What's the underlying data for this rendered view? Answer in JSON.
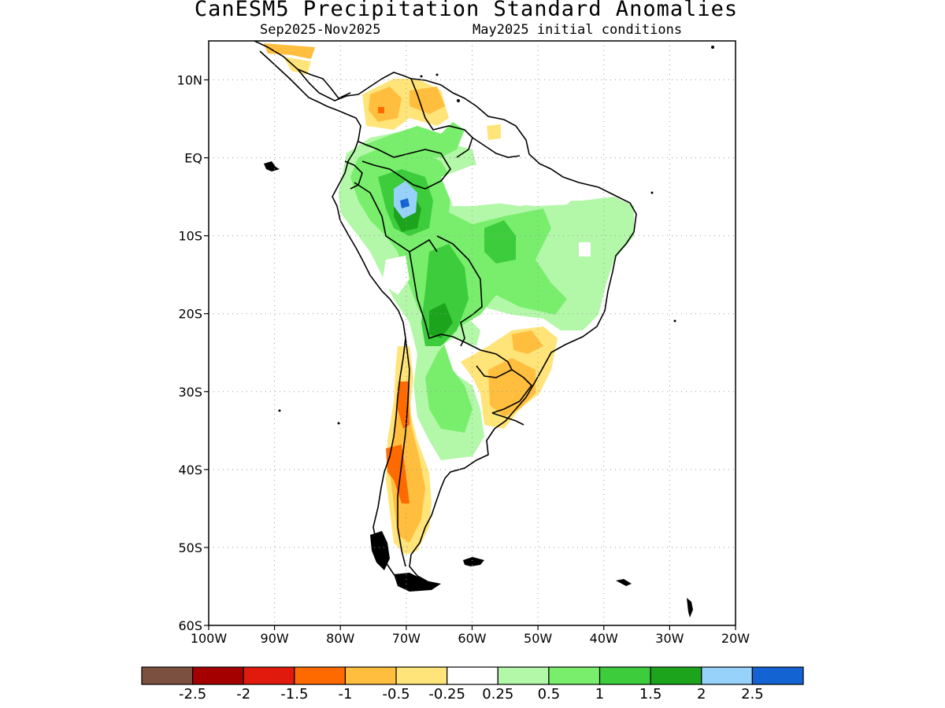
{
  "header": {
    "title": "CanESM5 Precipitation Standard Anomalies",
    "period": "Sep2025-Nov2025",
    "initial": "May2025 initial conditions"
  },
  "axes": {
    "lat_labels": [
      "10N",
      "EQ",
      "10S",
      "20S",
      "30S",
      "40S",
      "50S",
      "60S"
    ],
    "lat_values": [
      10,
      0,
      -10,
      -20,
      -30,
      -40,
      -50,
      -60
    ],
    "lon_labels": [
      "100W",
      "90W",
      "80W",
      "70W",
      "60W",
      "50W",
      "40W",
      "30W",
      "20W"
    ],
    "lon_values": [
      -100,
      -90,
      -80,
      -70,
      -60,
      -50,
      -40,
      -30,
      -20
    ],
    "lat_range": [
      -60,
      15
    ],
    "lon_range": [
      -100,
      -20
    ],
    "grid": "dotted"
  },
  "colorbar": {
    "colors": [
      "#7b5040",
      "#a50000",
      "#e01b0d",
      "#ff6a00",
      "#ffbe3d",
      "#ffe47a",
      "#ffffff",
      "#b3f7a8",
      "#78ee6c",
      "#3ccc3c",
      "#1ca51c",
      "#96d2fa",
      "#1463d2"
    ],
    "labels": [
      "-2.5",
      "-2",
      "-1.5",
      "-1",
      "-0.5",
      "-0.25",
      "0.25",
      "0.5",
      "1",
      "1.5",
      "2",
      "2.5"
    ]
  }
}
